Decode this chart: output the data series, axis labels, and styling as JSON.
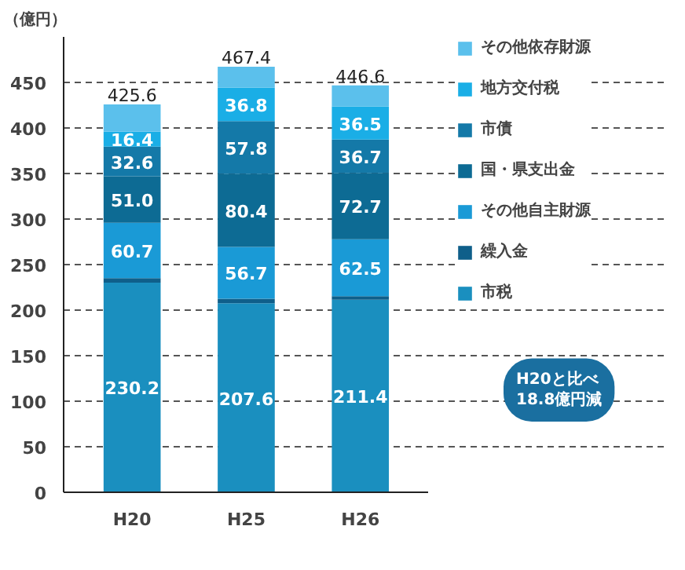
{
  "chart_data": {
    "type": "bar",
    "stacked": true,
    "ylabel": "（億円）",
    "categories": [
      "H20",
      "H25",
      "H26"
    ],
    "series": [
      {
        "name": "市税",
        "color": "#1a8fbf",
        "values": [
          230.2,
          207.6,
          211.4
        ],
        "value_labels": [
          "230.2",
          "207.6",
          "211.4"
        ]
      },
      {
        "name": "繰入金",
        "color": "#0f5f8a",
        "values": [
          5,
          5,
          4
        ],
        "value_labels": [
          null,
          null,
          null
        ]
      },
      {
        "name": "その他自主財源",
        "color": "#1a9ad6",
        "values": [
          60.7,
          56.7,
          62.5
        ],
        "value_labels": [
          "60.7",
          "56.7",
          "62.5"
        ]
      },
      {
        "name": "国・県支出金",
        "color": "#0d6b94",
        "values": [
          51.0,
          80.4,
          72.7
        ],
        "value_labels": [
          "51.0",
          "80.4",
          "72.7"
        ]
      },
      {
        "name": "市債",
        "color": "#1479a8",
        "values": [
          32.6,
          57.8,
          36.7
        ],
        "value_labels": [
          "32.6",
          "57.8",
          "36.7"
        ]
      },
      {
        "name": "地方交付税",
        "color": "#1aaee6",
        "values": [
          16.4,
          36.8,
          36.5
        ],
        "value_labels": [
          "16.4",
          "36.8",
          "36.5"
        ]
      },
      {
        "name": "その他依存財源",
        "color": "#5bc0ec",
        "values": [
          30,
          23,
          23
        ],
        "value_labels": [
          null,
          null,
          null
        ]
      }
    ],
    "totals": [
      "425.6",
      "467.4",
      "446.6"
    ],
    "ylim": [
      0,
      500
    ],
    "yticks": [
      0,
      50,
      100,
      150,
      200,
      250,
      300,
      350,
      400,
      450
    ],
    "grid": "y",
    "legend": "right",
    "annotations": [
      "H20と比べ\n18.8億円減"
    ]
  }
}
